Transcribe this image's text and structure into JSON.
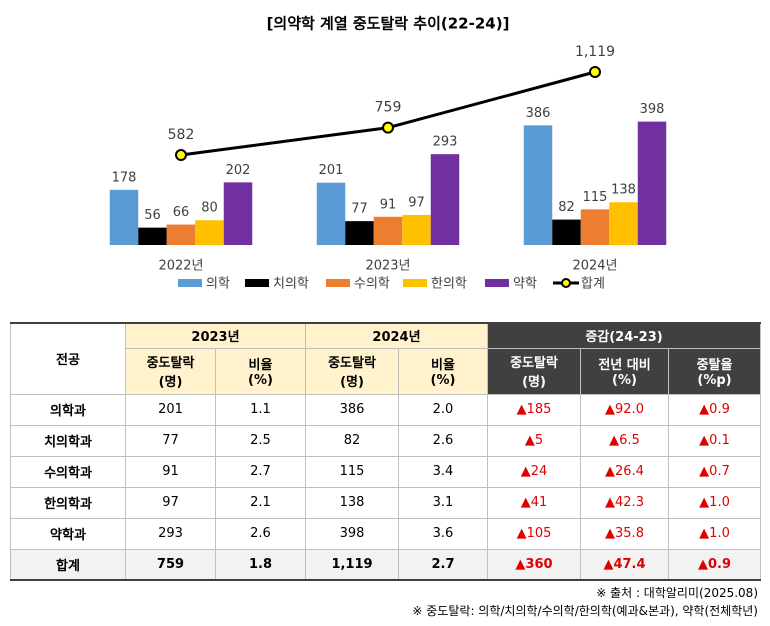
{
  "chart_data": {
    "type": "bar",
    "title": "[의약학 계열 중도탈락 추이(22-24)]",
    "categories": [
      "2022년",
      "2023년",
      "2024년"
    ],
    "series": [
      {
        "name": "의학",
        "color": "#5b9bd5",
        "values": [
          178,
          201,
          386
        ]
      },
      {
        "name": "치의학",
        "color": "#000000",
        "values": [
          56,
          77,
          82
        ]
      },
      {
        "name": "수의학",
        "color": "#ed7d31",
        "values": [
          66,
          91,
          115
        ]
      },
      {
        "name": "한의학",
        "color": "#ffc000",
        "values": [
          80,
          97,
          138
        ]
      },
      {
        "name": "약학",
        "color": "#7030a0",
        "values": [
          202,
          293,
          398
        ]
      },
      {
        "name": "합계",
        "type": "line",
        "color": "#000000",
        "marker_color": "#ffff00",
        "values": [
          582,
          759,
          1119
        ],
        "value_labels": [
          "582",
          "759",
          "1,119"
        ]
      }
    ]
  },
  "table": {
    "header": {
      "corner": "전공",
      "groups": [
        "2023년",
        "2024년",
        "증감(24-23)"
      ],
      "columns": [
        "중도탈락\n(명)",
        "비율\n(%)",
        "중도탈락\n(명)",
        "비율\n(%)",
        "중도탈락\n(명)",
        "전년 대비\n(%)",
        "중탈율\n(%p)"
      ]
    },
    "rows": [
      [
        "의학과",
        "201",
        "1.1",
        "386",
        "2.0",
        "▲185",
        "▲92.0",
        "▲0.9"
      ],
      [
        "치의학과",
        "77",
        "2.5",
        "82",
        "2.6",
        "▲5",
        "▲6.5",
        "▲0.1"
      ],
      [
        "수의학과",
        "91",
        "2.7",
        "115",
        "3.4",
        "▲24",
        "▲26.4",
        "▲0.7"
      ],
      [
        "한의학과",
        "97",
        "2.1",
        "138",
        "3.1",
        "▲41",
        "▲42.3",
        "▲1.0"
      ],
      [
        "약학과",
        "293",
        "2.6",
        "398",
        "3.6",
        "▲105",
        "▲35.8",
        "▲1.0"
      ],
      [
        "합계",
        "759",
        "1.8",
        "1,119",
        "2.7",
        "▲360",
        "▲47.4",
        "▲0.9"
      ]
    ]
  },
  "notes": [
    "※ 출처 : 대학알리미(2025.08)",
    "※ 중도탈락: 의학/치의학/수의학/한의학(예과&본과), 약학(전체학년)"
  ]
}
